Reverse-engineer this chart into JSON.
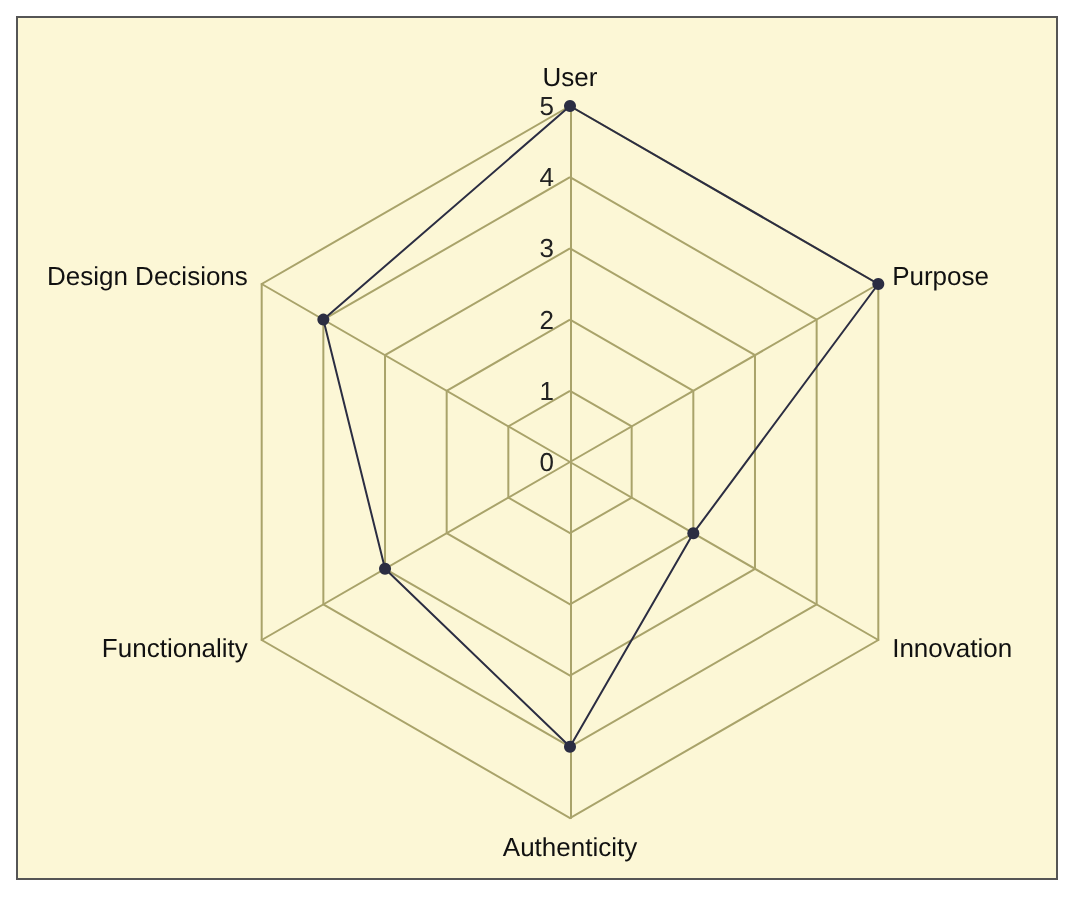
{
  "chart_data": {
    "type": "radar",
    "categories": [
      "User",
      "Purpose",
      "Innovation",
      "Authenticity",
      "Functionality",
      "Design Decisions"
    ],
    "series": [
      {
        "color": "#2b2d42",
        "values": [
          5,
          5,
          2,
          4,
          3,
          4
        ]
      }
    ],
    "ylim": [
      0,
      5
    ],
    "yticks": [
      0,
      1,
      2,
      3,
      4,
      5
    ],
    "marker": "circle",
    "line_style": "solid",
    "grid": true
  }
}
